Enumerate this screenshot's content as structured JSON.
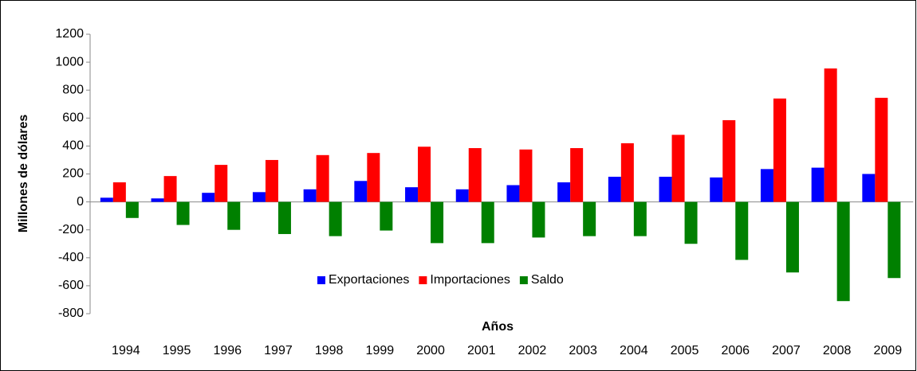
{
  "chart_data": {
    "type": "bar",
    "x_label": "Años",
    "y_label": "Millones de dólares",
    "categories": [
      "1994",
      "1995",
      "1996",
      "1997",
      "1998",
      "1999",
      "2000",
      "2001",
      "2002",
      "2003",
      "2004",
      "2005",
      "2006",
      "2007",
      "2008",
      "2009"
    ],
    "series": [
      {
        "name": "Exportaciones",
        "color": "#0000ff",
        "values": [
          30,
          25,
          65,
          70,
          90,
          150,
          105,
          90,
          120,
          140,
          180,
          180,
          175,
          235,
          245,
          200
        ]
      },
      {
        "name": "Importaciones",
        "color": "#ff0000",
        "values": [
          140,
          185,
          265,
          300,
          335,
          350,
          395,
          385,
          375,
          385,
          420,
          480,
          585,
          740,
          955,
          745
        ]
      },
      {
        "name": "Saldo",
        "color": "#008000",
        "values": [
          -115,
          -165,
          -200,
          -230,
          -245,
          -205,
          -295,
          -295,
          -255,
          -245,
          -245,
          -300,
          -415,
          -505,
          -710,
          -545
        ]
      }
    ],
    "ylim": [
      -800,
      1200
    ],
    "yticks": [
      -800,
      -600,
      -400,
      -200,
      0,
      200,
      400,
      600,
      800,
      1000,
      1200
    ],
    "legend": "inside-bottom",
    "grid": false
  }
}
